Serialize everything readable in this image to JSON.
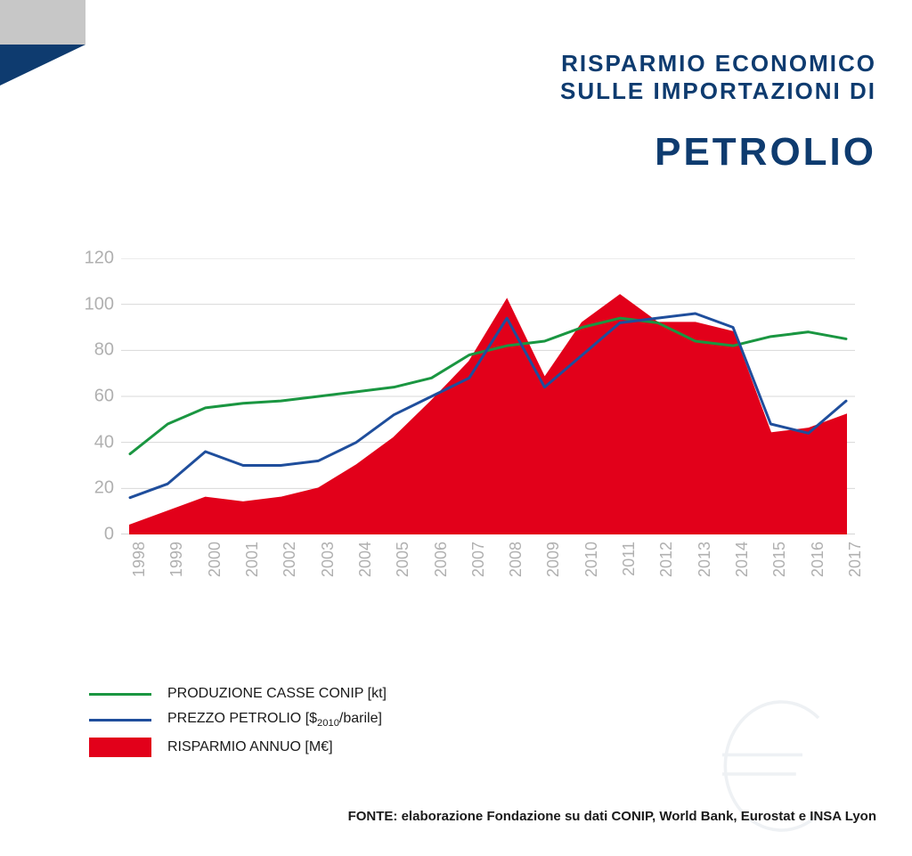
{
  "header": {
    "line1": "RISPARMIO ECONOMICO",
    "line2": "SULLE IMPORTAZIONI DI",
    "big": "PETROLIO",
    "color": "#0e3b6f"
  },
  "corner": {
    "square_color": "#c7c7c7",
    "triangle_color": "#0e3b6f"
  },
  "chart": {
    "type": "area+line+line",
    "background_color": "#ffffff",
    "grid_color": "#d8d8d8",
    "axis_text_color": "#b0b0b0",
    "ylim": [
      0,
      120
    ],
    "ytick_step": 20,
    "yticks": [
      0,
      20,
      40,
      60,
      80,
      100,
      120
    ],
    "years": [
      "1998",
      "1999",
      "2000",
      "2001",
      "2002",
      "2003",
      "2004",
      "2005",
      "2006",
      "2007",
      "2008",
      "2009",
      "2010",
      "2011",
      "2012",
      "2013",
      "2014",
      "2015",
      "2016",
      "2017"
    ],
    "series": {
      "produzione": {
        "label": "PRODUZIONE CASSE CONIP [kt]",
        "color": "#1a9641",
        "line_width": 3,
        "values": [
          35,
          48,
          55,
          57,
          58,
          60,
          62,
          64,
          68,
          78,
          82,
          84,
          90,
          94,
          92,
          84,
          82,
          86,
          88,
          85
        ]
      },
      "prezzo": {
        "label_prefix": "PREZZO PETROLIO [$",
        "label_sub": "2010",
        "label_suffix": "/barile]",
        "color": "#1f4e9c",
        "line_width": 3,
        "values": [
          16,
          22,
          36,
          30,
          30,
          32,
          40,
          52,
          60,
          68,
          94,
          64,
          78,
          92,
          94,
          96,
          90,
          48,
          44,
          58
        ]
      },
      "risparmio": {
        "label": "RISPARMIO ANNUO [M€]",
        "color": "#e2001a",
        "line_width": 2,
        "values": [
          4,
          10,
          16,
          14,
          16,
          20,
          30,
          42,
          58,
          75,
          102,
          68,
          92,
          104,
          92,
          92,
          88,
          44,
          46,
          52
        ]
      }
    }
  },
  "legend": {
    "items": [
      {
        "key": "produzione",
        "swatch": "line"
      },
      {
        "key": "prezzo",
        "swatch": "line"
      },
      {
        "key": "risparmio",
        "swatch": "box"
      }
    ]
  },
  "watermark": {
    "color": "#eef1f4"
  },
  "source": {
    "text": "FONTE: elaborazione Fondazione su dati CONIP, World Bank, Eurostat e INSA Lyon"
  }
}
